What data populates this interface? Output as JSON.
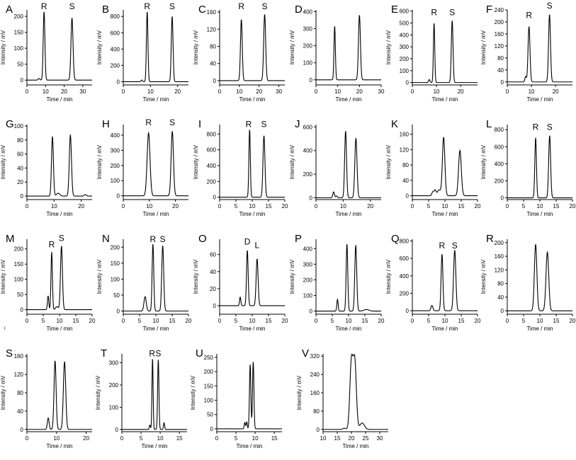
{
  "figure": {
    "xlabel": "Time / min",
    "ylabel": "Intensity / mV",
    "row_marks": [
      "",
      "",
      "I",
      "",
      ""
    ]
  },
  "chart_data": [
    {
      "id": "A",
      "type": "line",
      "xlim": [
        0,
        35
      ],
      "ylim": [
        -15,
        220
      ],
      "xticks": [
        0,
        10,
        20,
        30
      ],
      "yticks": [
        0,
        50,
        100,
        150,
        200
      ],
      "baseline": 0,
      "peaks": [
        {
          "x": 6.5,
          "h": 5,
          "w": 0.5
        },
        {
          "x": 9.2,
          "h": 215,
          "w": 0.45
        },
        {
          "x": 24.2,
          "h": 195,
          "w": 0.55
        }
      ],
      "labels": [
        {
          "text": "R",
          "x": 9.2,
          "y": 218
        },
        {
          "text": "S",
          "x": 24.2,
          "y": 218
        }
      ]
    },
    {
      "id": "B",
      "type": "line",
      "xlim": [
        0,
        24
      ],
      "ylim": [
        -40,
        880
      ],
      "xticks": [
        0,
        10,
        20
      ],
      "yticks": [
        0,
        200,
        400,
        600,
        800
      ],
      "baseline": 0,
      "peaks": [
        {
          "x": 6.8,
          "h": 20,
          "w": 0.25
        },
        {
          "x": 8.8,
          "h": 860,
          "w": 0.28
        },
        {
          "x": 18.0,
          "h": 800,
          "w": 0.32
        }
      ],
      "labels": [
        {
          "text": "R",
          "x": 8.8,
          "y": 870
        },
        {
          "text": "S",
          "x": 18.0,
          "y": 870
        }
      ]
    },
    {
      "id": "C",
      "type": "line",
      "xlim": [
        0,
        33
      ],
      "ylim": [
        -10,
        165
      ],
      "xticks": [
        0,
        10,
        20,
        30
      ],
      "yticks": [
        0,
        40,
        80,
        120,
        160
      ],
      "baseline": 0,
      "peaks": [
        {
          "x": 11.0,
          "h": 143,
          "w": 0.45
        },
        {
          "x": 22.8,
          "h": 155,
          "w": 0.5
        }
      ],
      "labels": [
        {
          "text": "R",
          "x": 11.0,
          "y": 163
        },
        {
          "text": "S",
          "x": 22.8,
          "y": 163
        }
      ]
    },
    {
      "id": "D",
      "type": "line",
      "xlim": [
        0,
        30
      ],
      "ylim": [
        -30,
        410
      ],
      "xticks": [
        0,
        10,
        20,
        30
      ],
      "yticks": [
        0,
        100,
        200,
        300,
        400
      ],
      "baseline": 0,
      "peaks": [
        {
          "x": 8.6,
          "h": 315,
          "w": 0.32
        },
        {
          "x": 20.0,
          "h": 380,
          "w": 0.45
        }
      ],
      "labels": []
    },
    {
      "id": "E",
      "type": "line",
      "xlim": [
        0,
        27
      ],
      "ylim": [
        -20,
        610
      ],
      "xticks": [
        0,
        10,
        20
      ],
      "yticks": [
        0,
        100,
        200,
        300,
        400,
        500,
        600
      ],
      "baseline": 0,
      "peaks": [
        {
          "x": 7.0,
          "h": 25,
          "w": 0.3
        },
        {
          "x": 9.0,
          "h": 500,
          "w": 0.28
        },
        {
          "x": 16.5,
          "h": 520,
          "w": 0.35
        }
      ],
      "labels": [
        {
          "text": "R",
          "x": 9.0,
          "y": 555
        },
        {
          "text": "S",
          "x": 16.5,
          "y": 555
        }
      ]
    },
    {
      "id": "F",
      "type": "line",
      "xlim": [
        0,
        27
      ],
      "ylim": [
        -10,
        240
      ],
      "xticks": [
        0,
        10,
        20
      ],
      "yticks": [
        0,
        40,
        80,
        120,
        160,
        200,
        240
      ],
      "baseline": 0,
      "peaks": [
        {
          "x": 7.6,
          "h": 18,
          "w": 0.3
        },
        {
          "x": 9.0,
          "h": 185,
          "w": 0.4
        },
        {
          "x": 17.5,
          "h": 225,
          "w": 0.4
        }
      ],
      "labels": [
        {
          "text": "R",
          "x": 9.0,
          "y": 208
        },
        {
          "text": "S",
          "x": 17.5,
          "y": 240
        }
      ]
    },
    {
      "id": "G",
      "type": "line",
      "xlim": [
        0,
        24
      ],
      "ylim": [
        -5,
        102
      ],
      "xticks": [
        0,
        10,
        20
      ],
      "yticks": [
        0,
        20,
        40,
        60,
        80,
        100
      ],
      "baseline": 0,
      "peaks": [
        {
          "x": 9.4,
          "h": 85,
          "w": 0.35
        },
        {
          "x": 11.5,
          "h": 4,
          "w": 0.6
        },
        {
          "x": 16.0,
          "h": 87,
          "w": 0.4
        },
        {
          "x": 21.5,
          "h": 2,
          "w": 0.4
        }
      ],
      "labels": []
    },
    {
      "id": "H",
      "type": "line",
      "xlim": [
        0,
        25
      ],
      "ylim": [
        -25,
        470
      ],
      "xticks": [
        0,
        10,
        20
      ],
      "yticks": [
        0,
        100,
        200,
        300,
        400
      ],
      "baseline": 0,
      "peaks": [
        {
          "x": 9.7,
          "h": 415,
          "w": 0.55
        },
        {
          "x": 18.8,
          "h": 425,
          "w": 0.45
        }
      ],
      "labels": [
        {
          "text": "R",
          "x": 9.7,
          "y": 455
        },
        {
          "text": "S",
          "x": 18.8,
          "y": 455
        }
      ]
    },
    {
      "id": "I",
      "type": "line",
      "xlim": [
        0,
        20
      ],
      "ylim": [
        -30,
        920
      ],
      "xticks": [
        0,
        5,
        10,
        15,
        20
      ],
      "yticks": [
        0,
        200,
        400,
        600,
        800
      ],
      "baseline": 0,
      "peaks": [
        {
          "x": 9.2,
          "h": 860,
          "w": 0.22
        },
        {
          "x": 13.6,
          "h": 780,
          "w": 0.3
        }
      ],
      "labels": [
        {
          "text": "R",
          "x": 8.9,
          "y": 870
        },
        {
          "text": "S",
          "x": 13.6,
          "y": 870
        }
      ]
    },
    {
      "id": "J",
      "type": "line",
      "xlim": [
        0,
        24
      ],
      "ylim": [
        -15,
        620
      ],
      "xticks": [
        0,
        10,
        20
      ],
      "yticks": [
        0,
        200,
        400,
        600
      ],
      "baseline": 0,
      "peaks": [
        {
          "x": 6.5,
          "h": 50,
          "w": 0.3
        },
        {
          "x": 7.6,
          "h": 15,
          "w": 0.3
        },
        {
          "x": 10.9,
          "h": 565,
          "w": 0.35
        },
        {
          "x": 14.7,
          "h": 505,
          "w": 0.4
        }
      ],
      "labels": []
    },
    {
      "id": "K",
      "type": "line",
      "xlim": [
        0,
        20
      ],
      "ylim": [
        -10,
        185
      ],
      "xticks": [
        0,
        5,
        10,
        15,
        20
      ],
      "yticks": [
        0,
        40,
        80,
        120,
        160
      ],
      "baseline": 0,
      "peaks": [
        {
          "x": 6.3,
          "h": 10,
          "w": 0.3
        },
        {
          "x": 7.0,
          "h": 14,
          "w": 0.3
        },
        {
          "x": 8.2,
          "h": 15,
          "w": 0.5
        },
        {
          "x": 9.6,
          "h": 152,
          "w": 0.38
        },
        {
          "x": 14.6,
          "h": 118,
          "w": 0.42
        }
      ],
      "labels": []
    },
    {
      "id": "L",
      "type": "line",
      "xlim": [
        0,
        20
      ],
      "ylim": [
        -20,
        860
      ],
      "xticks": [
        0,
        5,
        10,
        15,
        20
      ],
      "yticks": [
        0,
        200,
        400,
        600,
        800
      ],
      "baseline": 0,
      "peaks": [
        {
          "x": 8.7,
          "h": 705,
          "w": 0.25
        },
        {
          "x": 13.0,
          "h": 730,
          "w": 0.3
        }
      ],
      "labels": [
        {
          "text": "R",
          "x": 8.7,
          "y": 780
        },
        {
          "text": "S",
          "x": 13.0,
          "y": 780
        }
      ]
    },
    {
      "id": "M",
      "type": "line",
      "xlim": [
        0,
        20
      ],
      "ylim": [
        -15,
        232
      ],
      "xticks": [
        0,
        5,
        10,
        15,
        20
      ],
      "yticks": [
        0,
        50,
        100,
        150,
        200
      ],
      "baseline": 0,
      "peaks": [
        {
          "x": 6.5,
          "h": 45,
          "w": 0.2
        },
        {
          "x": 7.6,
          "h": 190,
          "w": 0.22
        },
        {
          "x": 9.2,
          "h": 10,
          "w": 0.4
        },
        {
          "x": 10.6,
          "h": 210,
          "w": 0.3
        }
      ],
      "labels": [
        {
          "text": "R",
          "x": 7.6,
          "y": 200
        },
        {
          "text": "S",
          "x": 10.6,
          "y": 222
        }
      ]
    },
    {
      "id": "N",
      "type": "line",
      "xlim": [
        0,
        20
      ],
      "ylim": [
        -10,
        225
      ],
      "xticks": [
        0,
        5,
        10,
        15,
        20
      ],
      "yticks": [
        0,
        50,
        100,
        150,
        200
      ],
      "baseline": 0,
      "peaks": [
        {
          "x": 6.7,
          "h": 45,
          "w": 0.35
        },
        {
          "x": 9.1,
          "h": 210,
          "w": 0.25
        },
        {
          "x": 12.1,
          "h": 205,
          "w": 0.3
        }
      ],
      "labels": [
        {
          "text": "R",
          "x": 9.1,
          "y": 212
        },
        {
          "text": "S",
          "x": 12.1,
          "y": 212
        }
      ]
    },
    {
      "id": "O",
      "type": "line",
      "xlim": [
        0,
        20
      ],
      "ylim": [
        -10,
        78
      ],
      "xticks": [
        0,
        5,
        10,
        15,
        20
      ],
      "yticks": [
        0,
        20,
        40,
        60
      ],
      "baseline": 0,
      "peaks": [
        {
          "x": 6.3,
          "h": 10,
          "w": 0.2
        },
        {
          "x": 8.5,
          "h": 65,
          "w": 0.25
        },
        {
          "x": 11.5,
          "h": 55,
          "w": 0.3
        }
      ],
      "labels": [
        {
          "text": "D",
          "x": 8.5,
          "y": 70
        },
        {
          "text": "L",
          "x": 11.5,
          "y": 66
        }
      ]
    },
    {
      "id": "P",
      "type": "line",
      "xlim": [
        0,
        20
      ],
      "ylim": [
        -20,
        460
      ],
      "xticks": [
        0,
        5,
        10,
        15,
        20
      ],
      "yticks": [
        0,
        100,
        200,
        300,
        400
      ],
      "baseline": 0,
      "peaks": [
        {
          "x": 6.6,
          "h": 75,
          "w": 0.2
        },
        {
          "x": 9.5,
          "h": 430,
          "w": 0.25
        },
        {
          "x": 12.2,
          "h": 420,
          "w": 0.3
        },
        {
          "x": 15.5,
          "h": 10,
          "w": 0.8
        }
      ],
      "labels": []
    },
    {
      "id": "Q",
      "type": "line",
      "xlim": [
        0,
        20
      ],
      "ylim": [
        -40,
        820
      ],
      "xticks": [
        0,
        5,
        10,
        15,
        20
      ],
      "yticks": [
        0,
        200,
        400,
        600,
        800
      ],
      "baseline": 0,
      "peaks": [
        {
          "x": 6.0,
          "h": 60,
          "w": 0.3
        },
        {
          "x": 9.1,
          "h": 650,
          "w": 0.28
        },
        {
          "x": 13.0,
          "h": 695,
          "w": 0.35
        }
      ],
      "labels": [
        {
          "text": "R",
          "x": 9.1,
          "y": 700
        },
        {
          "text": "S",
          "x": 13.0,
          "y": 700
        }
      ]
    },
    {
      "id": "R",
      "type": "line",
      "xlim": [
        0,
        20
      ],
      "ylim": [
        -10,
        210
      ],
      "xticks": [
        0,
        5,
        10,
        15,
        20
      ],
      "yticks": [
        0,
        40,
        80,
        120,
        160,
        200
      ],
      "baseline": 0,
      "peaks": [
        {
          "x": 8.7,
          "h": 195,
          "w": 0.38
        },
        {
          "x": 12.3,
          "h": 172,
          "w": 0.42
        }
      ],
      "labels": []
    },
    {
      "id": "S",
      "type": "line",
      "xlim": [
        0,
        22
      ],
      "ylim": [
        -5,
        165
      ],
      "xticks": [
        0,
        10,
        20
      ],
      "yticks": [
        0,
        40,
        80,
        120,
        160
      ],
      "baseline": 0,
      "peaks": [
        {
          "x": 7.2,
          "h": 25,
          "w": 0.3
        },
        {
          "x": 9.5,
          "h": 150,
          "w": 0.35
        },
        {
          "x": 12.7,
          "h": 148,
          "w": 0.4
        }
      ],
      "labels": []
    },
    {
      "id": "T",
      "type": "line",
      "xlim": [
        0,
        17
      ],
      "ylim": [
        -10,
        340
      ],
      "xticks": [
        0,
        5,
        10,
        15
      ],
      "yticks": [
        0,
        100,
        200,
        300
      ],
      "baseline": 0,
      "peaks": [
        {
          "x": 7.3,
          "h": 20,
          "w": 0.15
        },
        {
          "x": 8.0,
          "h": 320,
          "w": 0.15
        },
        {
          "x": 9.5,
          "h": 315,
          "w": 0.17
        },
        {
          "x": 11.0,
          "h": 30,
          "w": 0.15
        }
      ],
      "labels": [
        {
          "text": "R",
          "x": 7.9,
          "y": 322
        },
        {
          "text": "S",
          "x": 9.5,
          "y": 322
        }
      ]
    },
    {
      "id": "U",
      "type": "line",
      "xlim": [
        0,
        17
      ],
      "ylim": [
        -10,
        262
      ],
      "xticks": [
        0,
        5,
        10,
        15
      ],
      "yticks": [
        0,
        50,
        100,
        150,
        200,
        250
      ],
      "baseline": 0,
      "peaks": [
        {
          "x": 7.3,
          "h": 22,
          "w": 0.15
        },
        {
          "x": 7.8,
          "h": 24,
          "w": 0.15
        },
        {
          "x": 8.7,
          "h": 225,
          "w": 0.18
        },
        {
          "x": 9.5,
          "h": 235,
          "w": 0.18
        }
      ],
      "labels": []
    },
    {
      "id": "V",
      "type": "line",
      "xlim": [
        10,
        33
      ],
      "ylim": [
        -10,
        330
      ],
      "xticks": [
        10,
        15,
        20,
        25,
        30
      ],
      "yticks": [
        0,
        80,
        160,
        240,
        320
      ],
      "baseline": 0,
      "peaks": [
        {
          "x": 17.5,
          "h": 5,
          "w": 0.5
        },
        {
          "x": 20.0,
          "h": 292,
          "w": 0.55
        },
        {
          "x": 21.2,
          "h": 290,
          "w": 0.55
        },
        {
          "x": 23.8,
          "h": 28,
          "w": 0.8
        }
      ],
      "labels": []
    }
  ]
}
